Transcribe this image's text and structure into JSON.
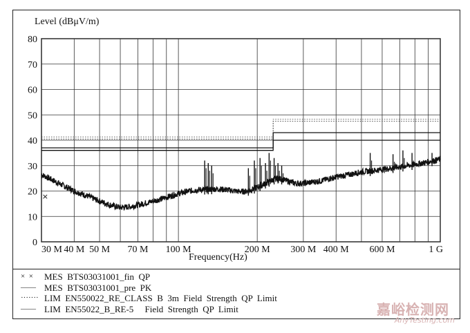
{
  "chart_data": {
    "type": "line",
    "ylabel": "Level (dBμV/m)",
    "xlabel": "Frequency(Hz)",
    "x_scale": "log",
    "xlim": [
      30,
      1000
    ],
    "ylim": [
      0,
      80
    ],
    "grid": true,
    "y_ticks": [
      0,
      10,
      20,
      30,
      40,
      50,
      60,
      70,
      80
    ],
    "x_ticks": [
      {
        "value": 30,
        "label": "30 M"
      },
      {
        "value": 40,
        "label": "40 M"
      },
      {
        "value": 50,
        "label": "50 M"
      },
      {
        "value": 70,
        "label": "70 M"
      },
      {
        "value": 100,
        "label": "100 M"
      },
      {
        "value": 200,
        "label": "200 M"
      },
      {
        "value": 300,
        "label": "300 M"
      },
      {
        "value": 400,
        "label": "400 M"
      },
      {
        "value": 600,
        "label": "600 M"
      },
      {
        "value": 1000,
        "label": "1 G"
      }
    ],
    "x_grid_extra": [
      60,
      80,
      90,
      500,
      700,
      800,
      900
    ],
    "series": [
      {
        "name": "MES  BTS03031001_fin  QP",
        "style": "markers",
        "x": [
          30.5
        ],
        "y": [
          18
        ]
      },
      {
        "name": "MES  BTS03031001_pre  PK",
        "style": "noisy-line",
        "x": [
          30,
          35,
          40,
          45,
          50,
          55,
          60,
          65,
          70,
          80,
          90,
          100,
          110,
          120,
          130,
          140,
          150,
          160,
          170,
          180,
          190,
          200,
          210,
          220,
          230,
          240,
          250,
          260,
          270,
          280,
          300,
          350,
          400,
          450,
          500,
          550,
          600,
          650,
          700,
          750,
          800,
          850,
          900,
          950,
          1000
        ],
        "y": [
          26.5,
          23,
          20,
          18,
          16,
          14.5,
          13.5,
          13.8,
          14.5,
          16,
          17.5,
          19,
          20,
          20.5,
          20.7,
          20.8,
          20.6,
          20.2,
          19.8,
          19.8,
          20.5,
          21.5,
          22.5,
          23.5,
          24.5,
          25,
          24.5,
          24,
          23.5,
          23,
          23,
          24,
          25.5,
          26.5,
          27.5,
          28,
          28.5,
          29,
          29.5,
          30,
          30.5,
          31,
          31.5,
          32,
          32.5
        ]
      },
      {
        "name": "LIM  EN550022_RE_CLASS  B  3m  Field  Strength  QP  Limit",
        "style": "dotted-step",
        "x": [
          30,
          230,
          230,
          1000
        ],
        "y": [
          40.5,
          40.5,
          47.5,
          47.5
        ]
      },
      {
        "name": "LIM  EN55022_B_RE-5     Field  Strength  QP  Limit",
        "style": "step",
        "x": [
          30,
          230,
          230,
          1000
        ],
        "y": [
          37,
          37,
          43,
          43
        ]
      }
    ],
    "limit_secondary": {
      "x": [
        30,
        230,
        230,
        1000
      ],
      "y": [
        36,
        36,
        40,
        40
      ]
    },
    "spikes": [
      {
        "x": 126,
        "y": 32
      },
      {
        "x": 130,
        "y": 31
      },
      {
        "x": 134,
        "y": 30
      },
      {
        "x": 185,
        "y": 29
      },
      {
        "x": 195,
        "y": 32
      },
      {
        "x": 205,
        "y": 33
      },
      {
        "x": 215,
        "y": 31
      },
      {
        "x": 222,
        "y": 35
      },
      {
        "x": 232,
        "y": 33
      },
      {
        "x": 240,
        "y": 31
      },
      {
        "x": 248,
        "y": 30
      },
      {
        "x": 540,
        "y": 35
      },
      {
        "x": 660,
        "y": 34.5
      },
      {
        "x": 720,
        "y": 36
      },
      {
        "x": 780,
        "y": 35
      },
      {
        "x": 930,
        "y": 35
      }
    ]
  },
  "legend": [
    {
      "mark": "×  ×",
      "text": "MES  BTS03031001_fin  QP"
    },
    {
      "mark": "——",
      "text": "MES  BTS03031001_pre  PK"
    },
    {
      "mark": "·······",
      "text": "LIM  EN550022_RE_CLASS  B  3m  Field  Strength  QP  Limit"
    },
    {
      "mark": "——",
      "text": "LIM  EN55022_B_RE-5     Field  Strength  QP  Limit"
    }
  ],
  "watermark": {
    "main": "嘉峪检测网",
    "sub": "AnyTesting.com"
  }
}
